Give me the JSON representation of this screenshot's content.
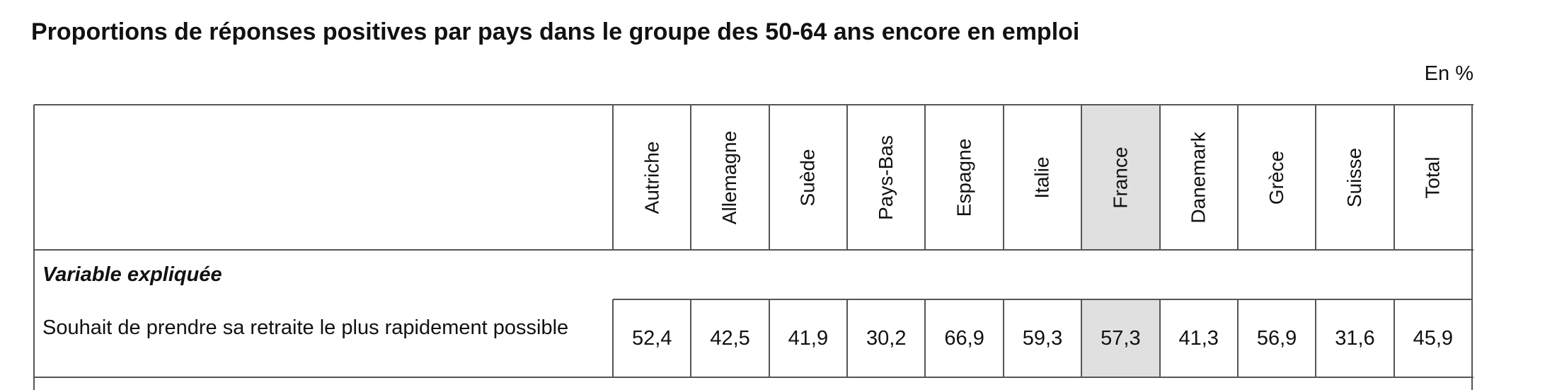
{
  "title": "Proportions de réponses positives par pays dans le groupe des 50-64 ans encore en emploi",
  "unit": "En %",
  "table": {
    "columns": [
      "Autriche",
      "Allemagne",
      "Suède",
      "Pays-Bas",
      "Espagne",
      "Italie",
      "France",
      "Danemark",
      "Grèce",
      "Suisse",
      "Total"
    ],
    "highlight_column": "France",
    "section": "Variable expliquée",
    "rows": [
      {
        "label": "Souhait de prendre sa retraite le plus rapidement possible",
        "values": [
          "52,4",
          "42,5",
          "41,9",
          "30,2",
          "66,9",
          "59,3",
          "57,3",
          "41,3",
          "56,9",
          "31,6",
          "45,9"
        ]
      }
    ]
  }
}
